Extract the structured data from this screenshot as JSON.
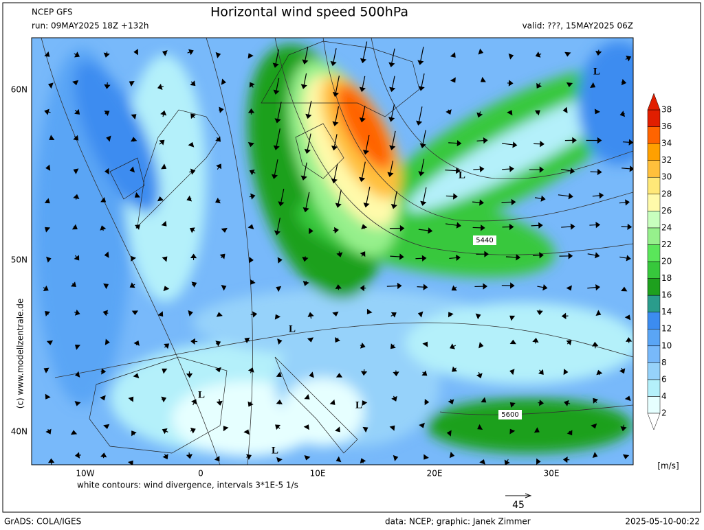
{
  "header": {
    "model": "NCEP GFS",
    "title": "Horizontal wind speed 500hPa",
    "run": "run: 09MAY2025 18Z +132h",
    "valid": "valid: ???, 15MAY2025 06Z"
  },
  "map": {
    "lat_labels": [
      "60N",
      "50N",
      "40N"
    ],
    "lon_labels": [
      "10W",
      "0",
      "10E",
      "20E",
      "30E"
    ],
    "contour_labels": [
      "5440",
      "5600"
    ],
    "lows": [
      "L",
      "L",
      "L",
      "L",
      "L",
      "L"
    ]
  },
  "colorbar": {
    "levels": [
      2,
      4,
      6,
      8,
      10,
      12,
      14,
      16,
      18,
      20,
      22,
      24,
      26,
      28,
      30,
      32,
      34,
      36,
      38
    ],
    "colors": [
      "#e6ffff",
      "#b4f0fa",
      "#96d2fa",
      "#78b9fa",
      "#5aa5f5",
      "#3c8cf0",
      "#2a9c8c",
      "#1ea01e",
      "#37c83c",
      "#5ae65a",
      "#96f08c",
      "#c8ffbe",
      "#fffaaa",
      "#ffe878",
      "#ffc03c",
      "#ffa000",
      "#ff6400",
      "#e11e00"
    ],
    "unit": "[m/s]"
  },
  "footnote": "white contours: wind divergence, intervals 3*1E-5 1/s",
  "vector_scale": "45",
  "side_text": "(c) www.modellzentrale.de",
  "footer": {
    "left": "GrADS: COLA/IGES",
    "center": "data: NCEP; graphic: Janek Zimmer",
    "right": "2025-05-10-00:22"
  }
}
